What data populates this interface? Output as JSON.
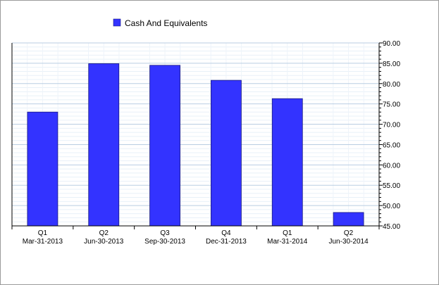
{
  "chart_data": {
    "type": "bar",
    "categories": [
      [
        "Q1",
        "Mar-31-2013"
      ],
      [
        "Q2",
        "Jun-30-2013"
      ],
      [
        "Q3",
        "Sep-30-2013"
      ],
      [
        "Q4",
        "Dec-31-2013"
      ],
      [
        "Q1",
        "Mar-31-2014"
      ],
      [
        "Q2",
        "Jun-30-2014"
      ]
    ],
    "series": [
      {
        "name": "Cash And Equivalents",
        "values": [
          73.0,
          84.9,
          84.5,
          80.8,
          76.3,
          48.3
        ],
        "color": "#3333ff"
      }
    ],
    "title": "",
    "xlabel": "",
    "ylabel": "",
    "ylim": [
      45,
      90
    ],
    "yticks": [
      "45.00",
      "50.00",
      "55.00",
      "60.00",
      "65.00",
      "70.00",
      "75.00",
      "80.00",
      "85.00",
      "90.00"
    ],
    "y_axis_side": "right",
    "grid": true,
    "legend_position": "top-left"
  }
}
